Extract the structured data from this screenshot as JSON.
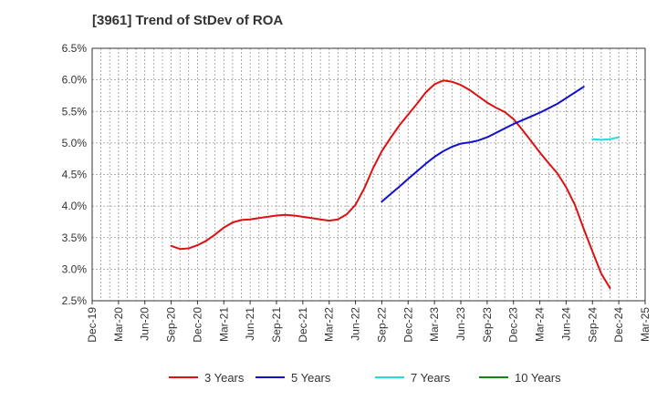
{
  "chart_data": {
    "type": "line",
    "title": "[3961]  Trend of StDev of ROA",
    "xlabel": "",
    "ylabel": "",
    "x_ticks": [
      "Dec-19",
      "Mar-20",
      "Jun-20",
      "Sep-20",
      "Dec-20",
      "Mar-21",
      "Jun-21",
      "Sep-21",
      "Dec-21",
      "Mar-22",
      "Jun-22",
      "Sep-22",
      "Dec-22",
      "Mar-23",
      "Jun-23",
      "Sep-23",
      "Dec-23",
      "Mar-24",
      "Jun-24",
      "Sep-24",
      "Dec-24",
      "Mar-25"
    ],
    "y_ticks": [
      "2.5%",
      "3.0%",
      "3.5%",
      "4.0%",
      "4.5%",
      "5.0%",
      "5.5%",
      "6.0%",
      "6.5%"
    ],
    "ylim": [
      2.5,
      6.5
    ],
    "y_unit": "%",
    "grid": true,
    "legend_position": "bottom",
    "series": [
      {
        "name": "3 Years",
        "color": "#dd1111",
        "points": [
          [
            "Sep-20",
            3.37
          ],
          [
            "Oct-20",
            3.32
          ],
          [
            "Nov-20",
            3.33
          ],
          [
            "Dec-20",
            3.38
          ],
          [
            "Jan-21",
            3.45
          ],
          [
            "Feb-21",
            3.55
          ],
          [
            "Mar-21",
            3.66
          ],
          [
            "Apr-21",
            3.74
          ],
          [
            "May-21",
            3.78
          ],
          [
            "Jun-21",
            3.79
          ],
          [
            "Jul-21",
            3.81
          ],
          [
            "Aug-21",
            3.83
          ],
          [
            "Sep-21",
            3.85
          ],
          [
            "Oct-21",
            3.86
          ],
          [
            "Nov-21",
            3.85
          ],
          [
            "Dec-21",
            3.83
          ],
          [
            "Jan-22",
            3.81
          ],
          [
            "Feb-22",
            3.79
          ],
          [
            "Mar-22",
            3.77
          ],
          [
            "Apr-22",
            3.79
          ],
          [
            "May-22",
            3.87
          ],
          [
            "Jun-22",
            4.02
          ],
          [
            "Jul-22",
            4.28
          ],
          [
            "Aug-22",
            4.6
          ],
          [
            "Sep-22",
            4.87
          ],
          [
            "Oct-22",
            5.08
          ],
          [
            "Nov-22",
            5.28
          ],
          [
            "Dec-22",
            5.45
          ],
          [
            "Jan-23",
            5.62
          ],
          [
            "Feb-23",
            5.8
          ],
          [
            "Mar-23",
            5.93
          ],
          [
            "Apr-23",
            5.99
          ],
          [
            "May-23",
            5.97
          ],
          [
            "Jun-23",
            5.92
          ],
          [
            "Jul-23",
            5.84
          ],
          [
            "Aug-23",
            5.74
          ],
          [
            "Sep-23",
            5.64
          ],
          [
            "Oct-23",
            5.56
          ],
          [
            "Nov-23",
            5.49
          ],
          [
            "Dec-23",
            5.38
          ],
          [
            "Jan-24",
            5.21
          ],
          [
            "Feb-24",
            5.03
          ],
          [
            "Mar-24",
            4.85
          ],
          [
            "Apr-24",
            4.68
          ],
          [
            "May-24",
            4.52
          ],
          [
            "Jun-24",
            4.3
          ],
          [
            "Jul-24",
            4.02
          ],
          [
            "Aug-24",
            3.64
          ],
          [
            "Sep-24",
            3.28
          ],
          [
            "Oct-24",
            2.93
          ],
          [
            "Nov-24",
            2.7
          ]
        ]
      },
      {
        "name": "5 Years",
        "color": "#1111cc",
        "points": [
          [
            "Sep-22",
            4.07
          ],
          [
            "Oct-22",
            4.19
          ],
          [
            "Nov-22",
            4.31
          ],
          [
            "Dec-22",
            4.43
          ],
          [
            "Jan-23",
            4.55
          ],
          [
            "Feb-23",
            4.67
          ],
          [
            "Mar-23",
            4.78
          ],
          [
            "Apr-23",
            4.87
          ],
          [
            "May-23",
            4.94
          ],
          [
            "Jun-23",
            4.99
          ],
          [
            "Jul-23",
            5.01
          ],
          [
            "Aug-23",
            5.04
          ],
          [
            "Sep-23",
            5.09
          ],
          [
            "Oct-23",
            5.16
          ],
          [
            "Nov-23",
            5.23
          ],
          [
            "Dec-23",
            5.3
          ],
          [
            "Jan-24",
            5.36
          ],
          [
            "Feb-24",
            5.42
          ],
          [
            "Mar-24",
            5.48
          ],
          [
            "Apr-24",
            5.55
          ],
          [
            "May-24",
            5.62
          ],
          [
            "Jun-24",
            5.71
          ],
          [
            "Jul-24",
            5.8
          ],
          [
            "Aug-24",
            5.89
          ]
        ]
      },
      {
        "name": "7 Years",
        "color": "#22dddd",
        "points": [
          [
            "Sep-24",
            5.06
          ],
          [
            "Oct-24",
            5.05
          ],
          [
            "Nov-24",
            5.06
          ],
          [
            "Dec-24",
            5.09
          ]
        ]
      },
      {
        "name": "10 Years",
        "color": "#118811",
        "points": []
      }
    ]
  }
}
